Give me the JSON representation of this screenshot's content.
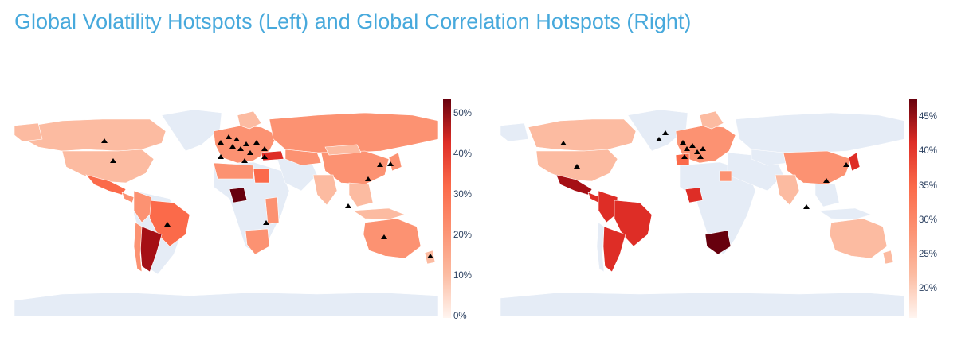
{
  "title": "Global Volatility Hotspots (Left) and Global Correlation Hotspots (Right)",
  "colors": {
    "land": "#e5ecf6",
    "c1": "#fcbba1",
    "c2": "#fc9272",
    "c3": "#fb6a4a",
    "c4": "#de2d26",
    "c5": "#a50f15",
    "c6": "#67000d",
    "marker": "#000000"
  },
  "left_colorbar": {
    "ticks": [
      "50%",
      "40%",
      "30%",
      "20%",
      "10%",
      "0%"
    ]
  },
  "right_colorbar": {
    "ticks": [
      "45%",
      "40%",
      "35%",
      "30%",
      "25%",
      "20%"
    ]
  },
  "chart_data": [
    {
      "type": "choropleth",
      "title": "Global Volatility Hotspots",
      "colorbar_range": [
        0,
        55
      ],
      "marker_symbol": "triangle-up"
    },
    {
      "type": "choropleth",
      "title": "Global Correlation Hotspots",
      "colorbar_range": [
        16,
        48
      ],
      "marker_symbol": "triangle-up"
    }
  ]
}
